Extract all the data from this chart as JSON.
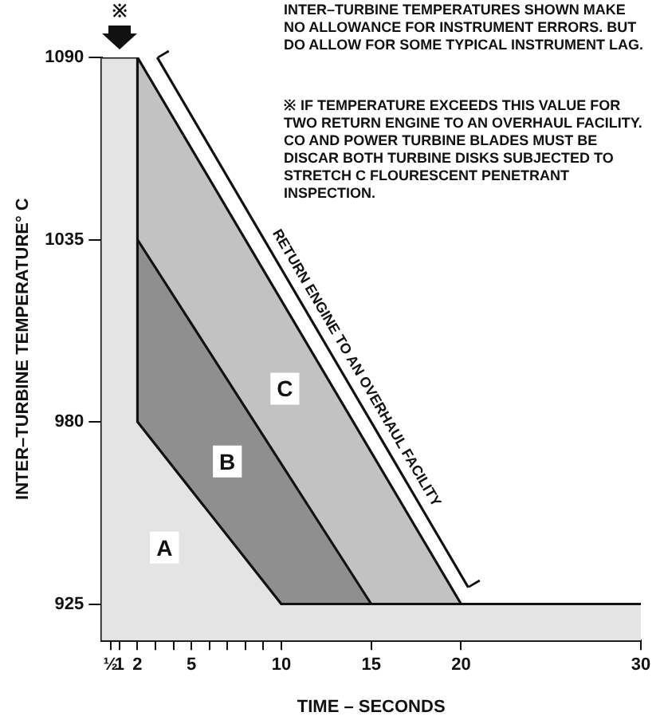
{
  "chart_data": {
    "type": "area",
    "xlabel": "TIME – SECONDS",
    "ylabel": "INTER–TURBINE TEMPERATURE° C",
    "series": [
      {
        "color": "#e4e4e4",
        "x": [
          0,
          2,
          2,
          10,
          30
        ],
        "values": [
          1090,
          1090,
          980,
          925,
          925
        ]
      },
      {
        "color": "#8f8f8f",
        "x": [
          2,
          15,
          30
        ],
        "values": [
          1035,
          925,
          925
        ]
      },
      {
        "color": "#c2c2c2",
        "x": [
          2,
          20,
          30
        ],
        "values": [
          1090,
          925,
          925
        ]
      },
      {
        "type": "line",
        "color": "#111111",
        "x": [
          3.1,
          20.4
        ],
        "values": [
          1090,
          930
        ]
      }
    ],
    "xlim": [
      0,
      30
    ],
    "xticks": [
      {
        "value": 0.5,
        "label": "½"
      },
      1,
      2,
      {
        "value": 3,
        "label": null
      },
      {
        "value": 4,
        "label": null
      },
      5,
      {
        "value": 6,
        "label": null
      },
      {
        "value": 7,
        "label": null
      },
      {
        "value": 8,
        "label": null
      },
      {
        "value": 9,
        "label": null
      },
      10,
      15,
      20,
      30
    ],
    "ylim": [
      914,
      1090
    ],
    "yticks": [
      925,
      980,
      1035,
      1090
    ],
    "grid": false,
    "legend": false,
    "marker": "none",
    "line_style": "solid",
    "annotations": [
      "INTER–TURBINE TEMPERATURES SHOWN MAKE NO ALLOWANCE FOR INSTRUMENT ERRORS. BUT DO ALLOW FOR SOME TYPICAL INSTRUMENT LAG.",
      "※ IF TEMPERATURE EXCEEDS THIS VALUE FOR TWO RETURN ENGINE TO AN OVERHAUL FACILITY. CO AND POWER TURBINE BLADES MUST BE DISCAR BOTH TURBINE DISKS SUBJECTED TO STRETCH C FLOURESCENT PENETRANT INSPECTION.",
      {
        "text": "A",
        "x": 3.5,
        "y": 942
      },
      {
        "text": "B",
        "x": 7,
        "y": 968
      },
      {
        "text": "C",
        "x": 10.2,
        "y": 990
      },
      "RETURN ENGINE TO AN OVERHAUL FACILITY",
      {
        "text": "※",
        "x": 1,
        "y": 1090
      }
    ]
  }
}
